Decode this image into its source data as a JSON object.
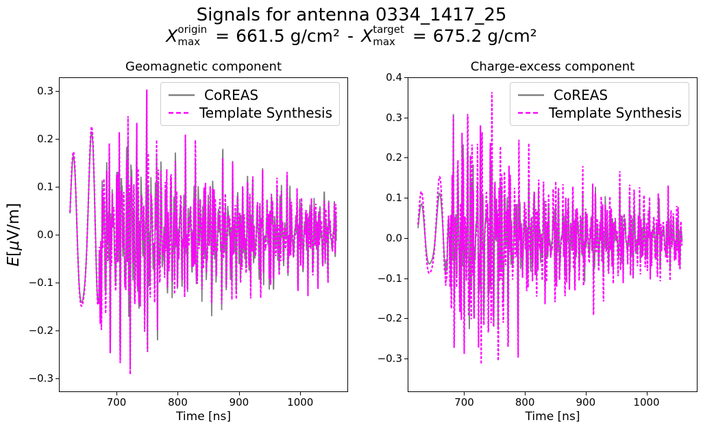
{
  "figure": {
    "title": "Signals for antenna 0334_1417_25",
    "subtitle": {
      "x1": "X",
      "sup1": "origin",
      "sub1": "max",
      "eq1": "=",
      "val1": "661.5 g/cm²",
      "sep": "-",
      "x2": "X",
      "sup2": "target",
      "sub2": "max",
      "eq2": "=",
      "val2": "675.2 g/cm²"
    },
    "background_color": "#ffffff",
    "text_color": "#000000"
  },
  "chart_data": [
    {
      "type": "line",
      "title": "Geomagnetic component",
      "xlabel": "Time [ns]",
      "ylabel_text": "E[μV/m]",
      "ylabel_parts": [
        {
          "t": "E",
          "italic": true
        },
        {
          "t": "[",
          "italic": false
        },
        {
          "t": "μ",
          "italic": true
        },
        {
          "t": "V/m]",
          "italic": false
        }
      ],
      "xlim": [
        606,
        1078
      ],
      "ylim": [
        -0.329,
        0.329
      ],
      "xticks": [
        700,
        800,
        900,
        1000
      ],
      "yticks": [
        0.3,
        0.2,
        0.1,
        0.0,
        -0.1,
        -0.2,
        -0.3
      ],
      "grid": false,
      "legend": {
        "location": "upper right",
        "entries": [
          {
            "label": "CoREAS",
            "color": "#808080",
            "linestyle": "solid"
          },
          {
            "label": "Template Synthesis",
            "color": "#ff00ff",
            "linestyle": "dashed"
          }
        ]
      },
      "series": [
        {
          "name": "CoREAS",
          "color": "#808080",
          "linestyle": "solid",
          "peak": 0.3
        },
        {
          "name": "Template Synthesis",
          "color": "#ff00ff",
          "linestyle": "dashed",
          "peak": 0.305
        }
      ],
      "signal_model": {
        "description": "noisy radio pulse: smooth ~30ns oscillation 623-670ns then dense high-frequency burst peaking ~700-750ns, slowly decaying tail to 1060ns",
        "t_start": 623,
        "t_end": 1060,
        "dt": 0.4,
        "smooth_period": 30,
        "smooth_peak_t": 628,
        "burst_start": 672,
        "burst_ramp": 8,
        "seed": 11,
        "mix_periods": [
          7.9,
          4.05,
          2.35
        ],
        "mod_periods": [
          21,
          15.5
        ],
        "envelope": [
          [
            623,
            0.16
          ],
          [
            628,
            0.18
          ],
          [
            636,
            0.2
          ],
          [
            644,
            0.22
          ],
          [
            652,
            0.22
          ],
          [
            660,
            0.24
          ],
          [
            668,
            0.27
          ],
          [
            676,
            0.29
          ],
          [
            688,
            0.26
          ],
          [
            700,
            0.29
          ],
          [
            714,
            0.31
          ],
          [
            726,
            0.29
          ],
          [
            736,
            0.26
          ],
          [
            748,
            0.31
          ],
          [
            758,
            0.24
          ],
          [
            772,
            0.19
          ],
          [
            795,
            0.17
          ],
          [
            820,
            0.18
          ],
          [
            845,
            0.16
          ],
          [
            870,
            0.17
          ],
          [
            895,
            0.15
          ],
          [
            920,
            0.15
          ],
          [
            945,
            0.14
          ],
          [
            970,
            0.13
          ],
          [
            1000,
            0.12
          ],
          [
            1030,
            0.11
          ],
          [
            1060,
            0.09
          ]
        ]
      }
    },
    {
      "type": "line",
      "title": "Charge-excess component",
      "xlabel": "Time [ns]",
      "ylabel_text": "",
      "ylabel_parts": [],
      "xlim": [
        607,
        1084
      ],
      "ylim": [
        -0.383,
        0.4
      ],
      "xticks": [
        700,
        800,
        900,
        1000
      ],
      "yticks": [
        0.4,
        0.3,
        0.2,
        0.1,
        0.0,
        -0.1,
        -0.2,
        -0.3
      ],
      "grid": false,
      "legend": {
        "location": "upper right",
        "entries": [
          {
            "label": "CoREAS",
            "color": "#808080",
            "linestyle": "solid"
          },
          {
            "label": "Template Synthesis",
            "color": "#ff00ff",
            "linestyle": "dashed"
          }
        ]
      },
      "series": [
        {
          "name": "CoREAS",
          "color": "#808080",
          "linestyle": "solid",
          "peak": 0.31
        },
        {
          "name": "Template Synthesis",
          "color": "#ff00ff",
          "linestyle": "dashed",
          "peak": 0.365
        }
      ],
      "signal_model": {
        "description": "noisy radio pulse: smooth ~30ns oscillation amplitude ~0.1 until 668ns, dense burst peaking ~0.36 near 712ns, decaying tail to 1060ns",
        "t_start": 623,
        "t_end": 1060,
        "dt": 0.4,
        "smooth_period": 30,
        "smooth_peak_t": 628,
        "burst_start": 670,
        "burst_ramp": 8,
        "seed": 23,
        "mix_periods": [
          7.9,
          4.05,
          2.35
        ],
        "mod_periods": [
          21,
          15.5
        ],
        "envelope": [
          [
            623,
            0.1
          ],
          [
            632,
            0.11
          ],
          [
            642,
            0.11
          ],
          [
            652,
            0.12
          ],
          [
            662,
            0.15
          ],
          [
            670,
            0.22
          ],
          [
            680,
            0.29
          ],
          [
            692,
            0.31
          ],
          [
            704,
            0.33
          ],
          [
            714,
            0.36
          ],
          [
            724,
            0.31
          ],
          [
            734,
            0.33
          ],
          [
            746,
            0.32
          ],
          [
            756,
            0.31
          ],
          [
            768,
            0.26
          ],
          [
            785,
            0.21
          ],
          [
            810,
            0.18
          ],
          [
            835,
            0.16
          ],
          [
            860,
            0.17
          ],
          [
            885,
            0.15
          ],
          [
            910,
            0.14
          ],
          [
            940,
            0.13
          ],
          [
            970,
            0.12
          ],
          [
            1000,
            0.12
          ],
          [
            1030,
            0.11
          ],
          [
            1060,
            0.1
          ]
        ]
      }
    }
  ]
}
